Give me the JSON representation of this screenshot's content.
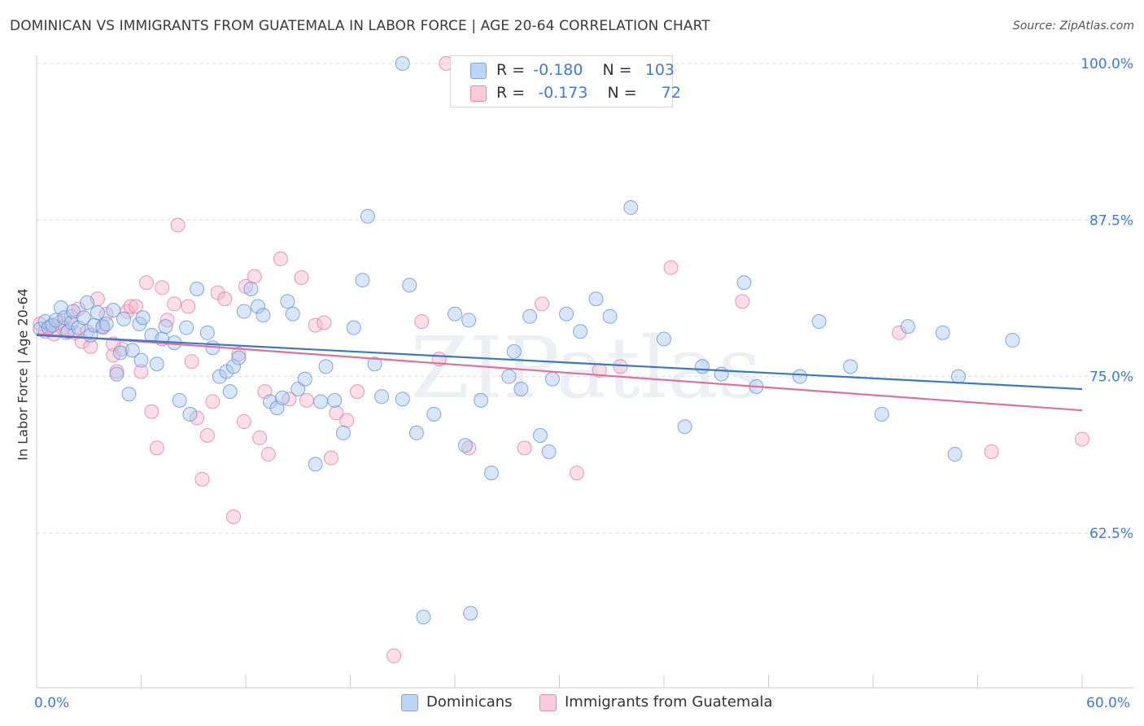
{
  "title": "DOMINICAN VS IMMIGRANTS FROM GUATEMALA IN LABOR FORCE | AGE 20-64 CORRELATION CHART",
  "source": "Source: ZipAtlas.com",
  "watermark": "ZIPatlas",
  "legend": {
    "rows": [
      {
        "r_label": "R =",
        "r_value": "-0.180",
        "n_label": "N =",
        "n_value": "103",
        "color": "#a9c8f0",
        "stroke": "#7aa6e0"
      },
      {
        "r_label": "R =",
        "r_value": "-0.173",
        "n_label": "N =",
        "n_value": "72",
        "color": "#f6b8cc",
        "stroke": "#e98aa9"
      }
    ]
  },
  "bottom_legend": [
    {
      "label": "Dominicans",
      "color": "#a9c8f0",
      "stroke": "#7aa6e0"
    },
    {
      "label": "Immigrants from Guatemala",
      "color": "#f6b8cc",
      "stroke": "#e98aa9"
    }
  ],
  "chart_data": {
    "type": "scatter",
    "title": "DOMINICAN VS IMMIGRANTS FROM GUATEMALA IN LABOR FORCE | AGE 20-64 CORRELATION CHART",
    "xlabel": "",
    "ylabel": "In Labor Force | Age 20-64",
    "xlim": [
      0,
      60
    ],
    "ylim": [
      51,
      101.5
    ],
    "x_tick_labels": [
      "0.0%",
      "60.0%"
    ],
    "y_ticks": [
      62.5,
      75.0,
      87.5,
      100.0
    ],
    "y_tick_labels": [
      "62.5%",
      "75.0%",
      "87.5%",
      "100.0%"
    ],
    "grid": "horizontal dashed",
    "colors": {
      "series1": "#3b78c9",
      "series2": "#e0709a"
    },
    "series": [
      {
        "name": "Dominicans",
        "trend": {
          "x": [
            0,
            60
          ],
          "y": [
            78.3,
            74.0
          ]
        },
        "points": [
          [
            0.2,
            78.8
          ],
          [
            0.5,
            79.4
          ],
          [
            0.7,
            78.9
          ],
          [
            0.9,
            79.1
          ],
          [
            1.1,
            79.5
          ],
          [
            1.4,
            80.5
          ],
          [
            1.6,
            79.7
          ],
          [
            1.8,
            78.6
          ],
          [
            2.0,
            79.3
          ],
          [
            2.1,
            80.2
          ],
          [
            2.4,
            78.9
          ],
          [
            2.7,
            79.7
          ],
          [
            2.9,
            80.9
          ],
          [
            3.1,
            78.3
          ],
          [
            3.3,
            79.1
          ],
          [
            3.5,
            80.1
          ],
          [
            3.8,
            79.0
          ],
          [
            4.0,
            79.2
          ],
          [
            4.4,
            80.3
          ],
          [
            4.6,
            75.2
          ],
          [
            4.8,
            76.9
          ],
          [
            5.0,
            79.6
          ],
          [
            5.3,
            73.6
          ],
          [
            5.5,
            77.1
          ],
          [
            5.9,
            79.2
          ],
          [
            6.0,
            76.3
          ],
          [
            6.1,
            79.7
          ],
          [
            6.6,
            78.3
          ],
          [
            6.9,
            76.0
          ],
          [
            7.2,
            78.0
          ],
          [
            7.4,
            79.0
          ],
          [
            7.9,
            77.7
          ],
          [
            8.2,
            73.1
          ],
          [
            8.6,
            78.9
          ],
          [
            8.8,
            72.0
          ],
          [
            9.2,
            82.0
          ],
          [
            9.8,
            78.5
          ],
          [
            10.1,
            77.3
          ],
          [
            10.5,
            75.0
          ],
          [
            10.9,
            75.4
          ],
          [
            11.1,
            73.8
          ],
          [
            11.3,
            75.8
          ],
          [
            11.6,
            76.5
          ],
          [
            11.9,
            80.2
          ],
          [
            12.3,
            82.0
          ],
          [
            12.7,
            80.6
          ],
          [
            13.0,
            79.9
          ],
          [
            13.4,
            73.0
          ],
          [
            13.8,
            72.5
          ],
          [
            14.1,
            73.3
          ],
          [
            14.4,
            81.0
          ],
          [
            14.7,
            80.0
          ],
          [
            15.0,
            74.0
          ],
          [
            15.4,
            74.8
          ],
          [
            16.0,
            68.0
          ],
          [
            16.3,
            73.0
          ],
          [
            16.6,
            75.8
          ],
          [
            17.1,
            73.1
          ],
          [
            17.6,
            70.5
          ],
          [
            18.2,
            78.9
          ],
          [
            18.7,
            82.7
          ],
          [
            19.4,
            76.0
          ],
          [
            19.8,
            73.4
          ],
          [
            21.0,
            73.2
          ],
          [
            21.4,
            82.3
          ],
          [
            21.8,
            70.5
          ],
          [
            22.8,
            72.0
          ],
          [
            22.2,
            55.8
          ],
          [
            24.0,
            80.0
          ],
          [
            24.6,
            69.5
          ],
          [
            24.8,
            79.5
          ],
          [
            25.5,
            73.1
          ],
          [
            26.1,
            67.3
          ],
          [
            27.1,
            75.0
          ],
          [
            27.4,
            77.0
          ],
          [
            27.8,
            74.0
          ],
          [
            28.3,
            79.8
          ],
          [
            28.9,
            70.3
          ],
          [
            29.4,
            69.0
          ],
          [
            29.6,
            74.8
          ],
          [
            30.4,
            80.0
          ],
          [
            31.2,
            78.6
          ],
          [
            32.1,
            81.2
          ],
          [
            32.9,
            79.8
          ],
          [
            34.1,
            88.5
          ],
          [
            36.0,
            78.0
          ],
          [
            37.2,
            71.0
          ],
          [
            38.2,
            75.8
          ],
          [
            39.3,
            75.2
          ],
          [
            40.6,
            82.5
          ],
          [
            41.3,
            74.2
          ],
          [
            43.8,
            75.0
          ],
          [
            44.9,
            79.4
          ],
          [
            46.7,
            75.8
          ],
          [
            48.5,
            72.0
          ],
          [
            50.0,
            79.0
          ],
          [
            52.0,
            78.5
          ],
          [
            52.7,
            68.8
          ],
          [
            52.9,
            75.0
          ],
          [
            56.0,
            77.9
          ],
          [
            21.0,
            100.0
          ],
          [
            19.0,
            87.8
          ],
          [
            24.9,
            56.1
          ]
        ]
      },
      {
        "name": "Immigrants from Guatemala",
        "trend": {
          "x": [
            0,
            60
          ],
          "y": [
            78.4,
            72.3
          ]
        },
        "points": [
          [
            0.2,
            79.2
          ],
          [
            0.5,
            78.6
          ],
          [
            0.8,
            79.0
          ],
          [
            1.0,
            78.4
          ],
          [
            1.3,
            79.3
          ],
          [
            1.5,
            78.9
          ],
          [
            1.7,
            78.5
          ],
          [
            2.0,
            79.8
          ],
          [
            2.2,
            78.5
          ],
          [
            2.4,
            80.4
          ],
          [
            2.6,
            77.8
          ],
          [
            2.9,
            78.6
          ],
          [
            3.1,
            77.4
          ],
          [
            3.5,
            81.2
          ],
          [
            3.8,
            78.9
          ],
          [
            4.0,
            80.0
          ],
          [
            4.4,
            76.7
          ],
          [
            4.6,
            75.4
          ],
          [
            4.9,
            77.2
          ],
          [
            5.2,
            80.2
          ],
          [
            5.4,
            80.6
          ],
          [
            5.7,
            80.6
          ],
          [
            6.0,
            75.4
          ],
          [
            6.3,
            82.5
          ],
          [
            6.6,
            72.2
          ],
          [
            6.9,
            69.3
          ],
          [
            7.2,
            82.1
          ],
          [
            7.5,
            79.5
          ],
          [
            7.9,
            80.8
          ],
          [
            8.1,
            87.1
          ],
          [
            8.7,
            80.6
          ],
          [
            8.9,
            76.2
          ],
          [
            9.2,
            71.7
          ],
          [
            9.5,
            66.8
          ],
          [
            9.8,
            70.3
          ],
          [
            10.1,
            73.0
          ],
          [
            10.4,
            81.7
          ],
          [
            10.8,
            81.2
          ],
          [
            11.3,
            63.8
          ],
          [
            11.6,
            76.8
          ],
          [
            11.9,
            71.4
          ],
          [
            12.0,
            82.2
          ],
          [
            12.5,
            83.0
          ],
          [
            12.8,
            70.1
          ],
          [
            13.1,
            73.8
          ],
          [
            13.3,
            68.8
          ],
          [
            14.0,
            84.4
          ],
          [
            14.5,
            73.2
          ],
          [
            15.2,
            82.9
          ],
          [
            15.5,
            73.1
          ],
          [
            16.0,
            79.1
          ],
          [
            16.5,
            79.3
          ],
          [
            16.9,
            68.5
          ],
          [
            17.2,
            72.1
          ],
          [
            17.8,
            71.5
          ],
          [
            18.4,
            73.8
          ],
          [
            20.5,
            52.7
          ],
          [
            22.1,
            79.4
          ],
          [
            23.1,
            76.4
          ],
          [
            24.8,
            69.3
          ],
          [
            28.0,
            69.3
          ],
          [
            29.0,
            80.8
          ],
          [
            31.0,
            67.3
          ],
          [
            32.3,
            75.5
          ],
          [
            36.4,
            83.7
          ],
          [
            40.5,
            81.0
          ],
          [
            49.5,
            78.5
          ],
          [
            54.8,
            69.0
          ],
          [
            60.0,
            70.0
          ],
          [
            33.5,
            75.8
          ],
          [
            23.5,
            100.0
          ],
          [
            4.4,
            77.6
          ]
        ]
      }
    ]
  }
}
